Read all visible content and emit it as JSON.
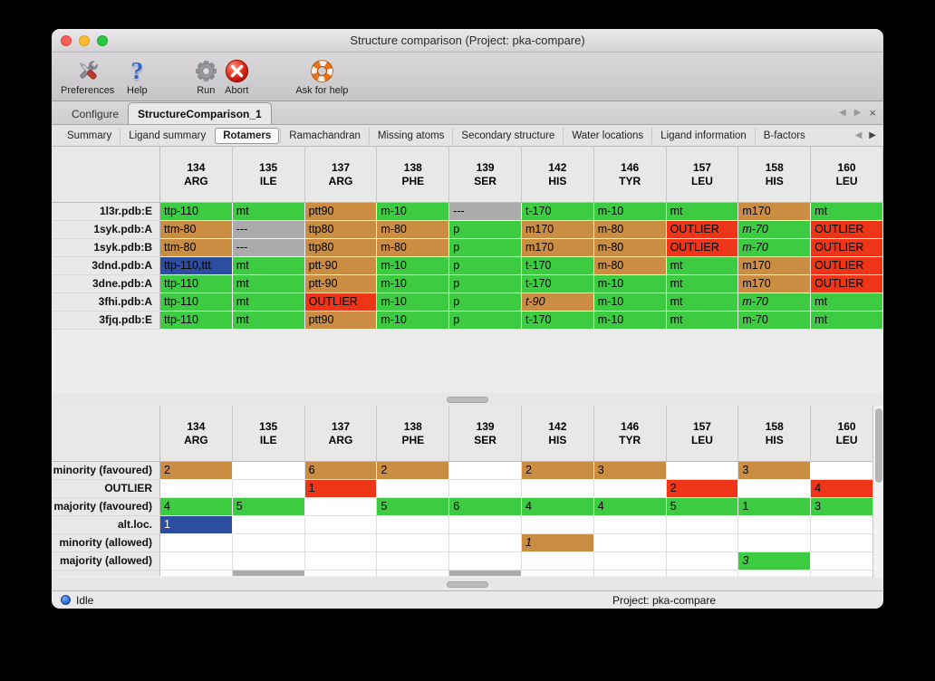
{
  "window": {
    "title": "Structure comparison (Project: pka-compare)"
  },
  "toolbar": {
    "items": [
      {
        "label": "Preferences",
        "icon": "tools-icon"
      },
      {
        "label": "Help",
        "icon": "question-mark-icon"
      },
      {
        "label": "Run",
        "icon": "gear-icon"
      },
      {
        "label": "Abort",
        "icon": "abort-x-icon"
      },
      {
        "label": "Ask for help",
        "icon": "lifebuoy-icon"
      }
    ]
  },
  "tabs": {
    "items": [
      {
        "label": "Configure",
        "active": false
      },
      {
        "label": "StructureComparison_1",
        "active": true
      }
    ],
    "controls": {
      "prev": "◀",
      "next": "▶",
      "close": "×"
    }
  },
  "subtabs": {
    "items": [
      {
        "label": "Summary",
        "active": false
      },
      {
        "label": "Ligand summary",
        "active": false
      },
      {
        "label": "Rotamers",
        "active": true
      },
      {
        "label": "Ramachandran",
        "active": false
      },
      {
        "label": "Missing atoms",
        "active": false
      },
      {
        "label": "Secondary structure",
        "active": false
      },
      {
        "label": "Water locations",
        "active": false
      },
      {
        "label": "Ligand information",
        "active": false
      },
      {
        "label": "B-factors",
        "active": false
      }
    ],
    "controls": {
      "prev": "◀",
      "next": "▶"
    }
  },
  "columns": [
    {
      "num": "134",
      "name": "ARG"
    },
    {
      "num": "135",
      "name": "ILE"
    },
    {
      "num": "137",
      "name": "ARG"
    },
    {
      "num": "138",
      "name": "PHE"
    },
    {
      "num": "139",
      "name": "SER"
    },
    {
      "num": "142",
      "name": "HIS"
    },
    {
      "num": "146",
      "name": "TYR"
    },
    {
      "num": "157",
      "name": "LEU"
    },
    {
      "num": "158",
      "name": "HIS"
    },
    {
      "num": "160",
      "name": "LEU"
    }
  ],
  "top_table": {
    "rows": [
      {
        "label": "1l3r.pdb:E",
        "cells": [
          {
            "text": "ttp-110",
            "color": "green"
          },
          {
            "text": "mt",
            "color": "green"
          },
          {
            "text": "ptt90",
            "color": "tan"
          },
          {
            "text": "m-10",
            "color": "green"
          },
          {
            "text": "---",
            "color": "gray"
          },
          {
            "text": "t-170",
            "color": "green"
          },
          {
            "text": "m-10",
            "color": "green"
          },
          {
            "text": "mt",
            "color": "green"
          },
          {
            "text": "m170",
            "color": "tan"
          },
          {
            "text": "mt",
            "color": "green"
          }
        ]
      },
      {
        "label": "1syk.pdb:A",
        "cells": [
          {
            "text": "ttm-80",
            "color": "tan"
          },
          {
            "text": "---",
            "color": "gray"
          },
          {
            "text": "ttp80",
            "color": "tan"
          },
          {
            "text": "m-80",
            "color": "tan"
          },
          {
            "text": "p",
            "color": "green"
          },
          {
            "text": "m170",
            "color": "tan"
          },
          {
            "text": "m-80",
            "color": "tan"
          },
          {
            "text": "OUTLIER",
            "color": "red"
          },
          {
            "text": "m-70",
            "color": "green",
            "italic": true
          },
          {
            "text": "OUTLIER",
            "color": "red"
          }
        ]
      },
      {
        "label": "1syk.pdb:B",
        "cells": [
          {
            "text": "ttm-80",
            "color": "tan"
          },
          {
            "text": "---",
            "color": "gray"
          },
          {
            "text": "ttp80",
            "color": "tan"
          },
          {
            "text": "m-80",
            "color": "tan"
          },
          {
            "text": "p",
            "color": "green"
          },
          {
            "text": "m170",
            "color": "tan"
          },
          {
            "text": "m-80",
            "color": "tan"
          },
          {
            "text": "OUTLIER",
            "color": "red"
          },
          {
            "text": "m-70",
            "color": "green",
            "italic": true
          },
          {
            "text": "OUTLIER",
            "color": "red"
          }
        ]
      },
      {
        "label": "3dnd.pdb:A",
        "cells": [
          {
            "text": "ttp-110,ttt",
            "color": "blue"
          },
          {
            "text": "mt",
            "color": "green"
          },
          {
            "text": "ptt-90",
            "color": "tan"
          },
          {
            "text": "m-10",
            "color": "green"
          },
          {
            "text": "p",
            "color": "green"
          },
          {
            "text": "t-170",
            "color": "green"
          },
          {
            "text": "m-80",
            "color": "tan"
          },
          {
            "text": "mt",
            "color": "green"
          },
          {
            "text": "m170",
            "color": "tan"
          },
          {
            "text": "OUTLIER",
            "color": "red"
          }
        ]
      },
      {
        "label": "3dne.pdb:A",
        "cells": [
          {
            "text": "ttp-110",
            "color": "green"
          },
          {
            "text": "mt",
            "color": "green"
          },
          {
            "text": "ptt-90",
            "color": "tan"
          },
          {
            "text": "m-10",
            "color": "green"
          },
          {
            "text": "p",
            "color": "green"
          },
          {
            "text": "t-170",
            "color": "green"
          },
          {
            "text": "m-10",
            "color": "green"
          },
          {
            "text": "mt",
            "color": "green"
          },
          {
            "text": "m170",
            "color": "tan"
          },
          {
            "text": "OUTLIER",
            "color": "red"
          }
        ]
      },
      {
        "label": "3fhi.pdb:A",
        "cells": [
          {
            "text": "ttp-110",
            "color": "green"
          },
          {
            "text": "mt",
            "color": "green"
          },
          {
            "text": "OUTLIER",
            "color": "red"
          },
          {
            "text": "m-10",
            "color": "green"
          },
          {
            "text": "p",
            "color": "green"
          },
          {
            "text": "t-90",
            "color": "tan",
            "italic": true
          },
          {
            "text": "m-10",
            "color": "green"
          },
          {
            "text": "mt",
            "color": "green"
          },
          {
            "text": "m-70",
            "color": "green",
            "italic": true
          },
          {
            "text": "mt",
            "color": "green"
          }
        ]
      },
      {
        "label": "3fjq.pdb:E",
        "cells": [
          {
            "text": "ttp-110",
            "color": "green"
          },
          {
            "text": "mt",
            "color": "green"
          },
          {
            "text": "ptt90",
            "color": "tan"
          },
          {
            "text": "m-10",
            "color": "green"
          },
          {
            "text": "p",
            "color": "green"
          },
          {
            "text": "t-170",
            "color": "green"
          },
          {
            "text": "m-10",
            "color": "green"
          },
          {
            "text": "mt",
            "color": "green"
          },
          {
            "text": "m-70",
            "color": "green"
          },
          {
            "text": "mt",
            "color": "green"
          }
        ]
      }
    ]
  },
  "bottom_table": {
    "partial_gray_columns": [
      1,
      4
    ],
    "rows": [
      {
        "label": "minority (favoured)",
        "cells": [
          {
            "text": "2",
            "color": "tan"
          },
          {
            "text": "",
            "color": "none"
          },
          {
            "text": "6",
            "color": "tan"
          },
          {
            "text": "2",
            "color": "tan"
          },
          {
            "text": "",
            "color": "none"
          },
          {
            "text": "2",
            "color": "tan"
          },
          {
            "text": "3",
            "color": "tan"
          },
          {
            "text": "",
            "color": "none"
          },
          {
            "text": "3",
            "color": "tan"
          },
          {
            "text": "",
            "color": "none"
          }
        ]
      },
      {
        "label": "OUTLIER",
        "cells": [
          {
            "text": "",
            "color": "none"
          },
          {
            "text": "",
            "color": "none"
          },
          {
            "text": "1",
            "color": "red"
          },
          {
            "text": "",
            "color": "none"
          },
          {
            "text": "",
            "color": "none"
          },
          {
            "text": "",
            "color": "none"
          },
          {
            "text": "",
            "color": "none"
          },
          {
            "text": "2",
            "color": "red"
          },
          {
            "text": "",
            "color": "none"
          },
          {
            "text": "4",
            "color": "red"
          }
        ]
      },
      {
        "label": "majority (favoured)",
        "cells": [
          {
            "text": "4",
            "color": "green"
          },
          {
            "text": "5",
            "color": "green"
          },
          {
            "text": "",
            "color": "none"
          },
          {
            "text": "5",
            "color": "green"
          },
          {
            "text": "6",
            "color": "green"
          },
          {
            "text": "4",
            "color": "green"
          },
          {
            "text": "4",
            "color": "green"
          },
          {
            "text": "5",
            "color": "green"
          },
          {
            "text": "1",
            "color": "green"
          },
          {
            "text": "3",
            "color": "green"
          }
        ]
      },
      {
        "label": "alt.loc.",
        "cells": [
          {
            "text": "1",
            "color": "blue",
            "fg": "#ffffff"
          },
          {
            "text": "",
            "color": "none"
          },
          {
            "text": "",
            "color": "none"
          },
          {
            "text": "",
            "color": "none"
          },
          {
            "text": "",
            "color": "none"
          },
          {
            "text": "",
            "color": "none"
          },
          {
            "text": "",
            "color": "none"
          },
          {
            "text": "",
            "color": "none"
          },
          {
            "text": "",
            "color": "none"
          },
          {
            "text": "",
            "color": "none"
          }
        ]
      },
      {
        "label": "minority (allowed)",
        "cells": [
          {
            "text": "",
            "color": "none"
          },
          {
            "text": "",
            "color": "none"
          },
          {
            "text": "",
            "color": "none"
          },
          {
            "text": "",
            "color": "none"
          },
          {
            "text": "",
            "color": "none"
          },
          {
            "text": "1",
            "color": "tan",
            "italic": true
          },
          {
            "text": "",
            "color": "none"
          },
          {
            "text": "",
            "color": "none"
          },
          {
            "text": "",
            "color": "none"
          },
          {
            "text": "",
            "color": "none"
          }
        ]
      },
      {
        "label": "majority (allowed)",
        "cells": [
          {
            "text": "",
            "color": "none"
          },
          {
            "text": "",
            "color": "none"
          },
          {
            "text": "",
            "color": "none"
          },
          {
            "text": "",
            "color": "none"
          },
          {
            "text": "",
            "color": "none"
          },
          {
            "text": "",
            "color": "none"
          },
          {
            "text": "",
            "color": "none"
          },
          {
            "text": "",
            "color": "none"
          },
          {
            "text": "3",
            "color": "green",
            "italic": true
          },
          {
            "text": "",
            "color": "none"
          }
        ]
      }
    ]
  },
  "statusbar": {
    "status": "Idle",
    "project": "Project: pka-compare"
  },
  "colors": {
    "green": "#3dcb42",
    "tan": "#cb8d42",
    "red": "#ef3517",
    "gray": "#ababab",
    "blue": "#2c4da0"
  }
}
